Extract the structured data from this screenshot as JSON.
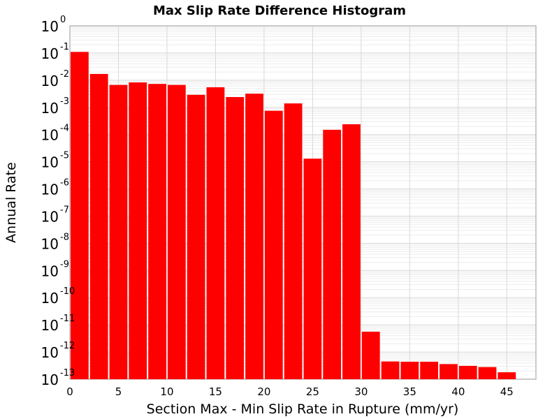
{
  "chart_data": {
    "type": "bar",
    "title": "Max Slip Rate Difference Histogram",
    "xlabel": "Section Max - Min Slip Rate in Rupture (mm/yr)",
    "ylabel": "Annual Rate",
    "y_scale": "log",
    "ylim": [
      1e-13,
      1
    ],
    "xlim": [
      0,
      48
    ],
    "bin_width": 2,
    "x_ticks": [
      0,
      5,
      10,
      15,
      20,
      25,
      30,
      35,
      40,
      45
    ],
    "y_ticks": [
      {
        "base": "10",
        "exp": "0",
        "value": 1
      },
      {
        "base": "10",
        "exp": "-1",
        "value": 0.1
      },
      {
        "base": "10",
        "exp": "-2",
        "value": 0.01
      },
      {
        "base": "10",
        "exp": "-3",
        "value": 0.001
      },
      {
        "base": "10",
        "exp": "-4",
        "value": 0.0001
      },
      {
        "base": "10",
        "exp": "-5",
        "value": 1e-05
      },
      {
        "base": "10",
        "exp": "-6",
        "value": 1e-06
      },
      {
        "base": "10",
        "exp": "-7",
        "value": 1e-07
      },
      {
        "base": "10",
        "exp": "-8",
        "value": 1e-08
      },
      {
        "base": "10",
        "exp": "-9",
        "value": 1e-09
      },
      {
        "base": "10",
        "exp": "-10",
        "value": 1e-10
      },
      {
        "base": "10",
        "exp": "-11",
        "value": 1e-11
      },
      {
        "base": "10",
        "exp": "-12",
        "value": 1e-12
      },
      {
        "base": "10",
        "exp": "-13",
        "value": 1e-13
      }
    ],
    "x": [
      1,
      3,
      5,
      7,
      9,
      11,
      13,
      15,
      17,
      19,
      21,
      23,
      25,
      27,
      29,
      31,
      33,
      35,
      37,
      39,
      41,
      43,
      45
    ],
    "values": [
      0.11,
      0.017,
      0.0067,
      0.0083,
      0.0073,
      0.0067,
      0.0029,
      0.0055,
      0.0024,
      0.0032,
      0.00075,
      0.0014,
      1.3e-05,
      0.00015,
      0.00024,
      5.6e-12,
      4.5e-13,
      4.4e-13,
      4.4e-13,
      3.6e-13,
      3.1e-13,
      2.8e-13,
      1.8e-13
    ],
    "bar_color": "#ff0000",
    "grid": true
  }
}
